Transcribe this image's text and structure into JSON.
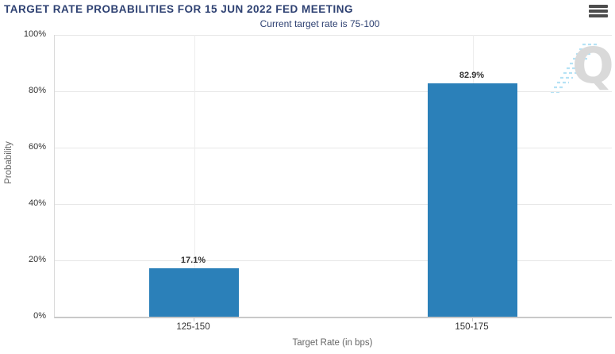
{
  "header": {
    "title": "TARGET RATE PROBABILITIES FOR 15 JUN 2022 FED MEETING",
    "subtitle": "Current target rate is 75-100"
  },
  "menu": {
    "icon": "hamburger-menu-icon"
  },
  "watermark": {
    "letter": "Q"
  },
  "chart_data": {
    "type": "bar",
    "title": "TARGET RATE PROBABILITIES FOR 15 JUN 2022 FED MEETING",
    "subtitle": "Current target rate is 75-100",
    "categories": [
      "125-150",
      "150-175"
    ],
    "values": [
      17.1,
      82.9
    ],
    "data_labels": [
      "17.1%",
      "82.9%"
    ],
    "xlabel": "Target Rate (in bps)",
    "ylabel": "Probability",
    "ylim": [
      0,
      100
    ],
    "yticks": [
      0,
      20,
      40,
      60,
      80,
      100
    ],
    "ytick_labels": [
      "0%",
      "20%",
      "40%",
      "60%",
      "80%",
      "100%"
    ],
    "grid": true,
    "legend_position": "none",
    "bar_color": "#2b80b9"
  },
  "colors": {
    "bar": "#2b80b9",
    "heading_text": "#2e4172",
    "tick_text": "#333333",
    "axis_title_text": "#666666",
    "gridline": "#e7e7e7",
    "axis_line": "#c9c9c9",
    "watermark_gray": "#d9d9d9",
    "watermark_blue": "#b5e2f5",
    "menu_icon": "#4d4d4d"
  }
}
